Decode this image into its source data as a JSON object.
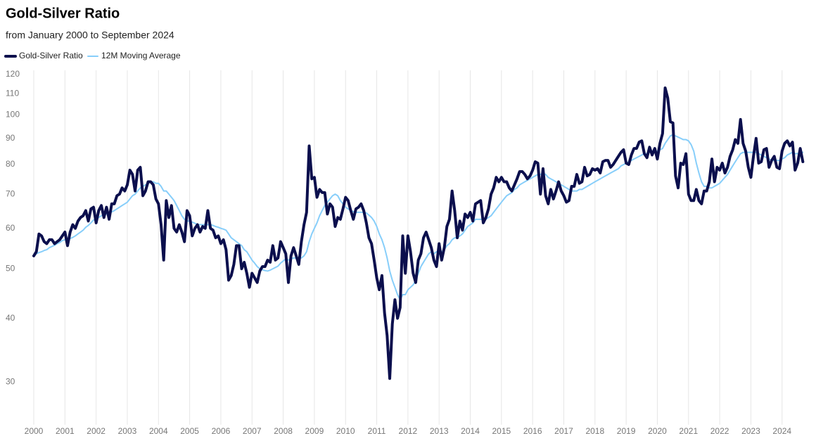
{
  "chart_data": {
    "type": "line",
    "title": "Gold-Silver Ratio",
    "subtitle": "from January 2000 to September 2024",
    "log_scale": true,
    "grid": "x",
    "legend": "top-left",
    "xlim": [
      2000,
      2024.75
    ],
    "xticks": [
      2000,
      2001,
      2002,
      2003,
      2004,
      2005,
      2006,
      2007,
      2008,
      2009,
      2010,
      2011,
      2012,
      2013,
      2014,
      2015,
      2016,
      2017,
      2018,
      2019,
      2020,
      2021,
      2022,
      2023,
      2024
    ],
    "ylim": [
      25,
      120
    ],
    "yticks": [
      30,
      40,
      50,
      60,
      70,
      80,
      90,
      100,
      110,
      120
    ],
    "x": [
      2000,
      2000.083,
      2000.167,
      2000.25,
      2000.333,
      2000.417,
      2000.5,
      2000.583,
      2000.667,
      2000.75,
      2000.833,
      2000.917,
      2001,
      2001.083,
      2001.167,
      2001.25,
      2001.333,
      2001.417,
      2001.5,
      2001.583,
      2001.667,
      2001.75,
      2001.833,
      2001.917,
      2002,
      2002.083,
      2002.167,
      2002.25,
      2002.333,
      2002.417,
      2002.5,
      2002.583,
      2002.667,
      2002.75,
      2002.833,
      2002.917,
      2003,
      2003.083,
      2003.167,
      2003.25,
      2003.333,
      2003.417,
      2003.5,
      2003.583,
      2003.667,
      2003.75,
      2003.833,
      2003.917,
      2004,
      2004.083,
      2004.167,
      2004.25,
      2004.333,
      2004.417,
      2004.5,
      2004.583,
      2004.667,
      2004.75,
      2004.833,
      2004.917,
      2005,
      2005.083,
      2005.167,
      2005.25,
      2005.333,
      2005.417,
      2005.5,
      2005.583,
      2005.667,
      2005.75,
      2005.833,
      2005.917,
      2006,
      2006.083,
      2006.167,
      2006.25,
      2006.333,
      2006.417,
      2006.5,
      2006.583,
      2006.667,
      2006.75,
      2006.833,
      2006.917,
      2007,
      2007.083,
      2007.167,
      2007.25,
      2007.333,
      2007.417,
      2007.5,
      2007.583,
      2007.667,
      2007.75,
      2007.833,
      2007.917,
      2008,
      2008.083,
      2008.167,
      2008.25,
      2008.333,
      2008.417,
      2008.5,
      2008.583,
      2008.667,
      2008.75,
      2008.833,
      2008.917,
      2009,
      2009.083,
      2009.167,
      2009.25,
      2009.333,
      2009.417,
      2009.5,
      2009.583,
      2009.667,
      2009.75,
      2009.833,
      2009.917,
      2010,
      2010.083,
      2010.167,
      2010.25,
      2010.333,
      2010.417,
      2010.5,
      2010.583,
      2010.667,
      2010.75,
      2010.833,
      2010.917,
      2011,
      2011.083,
      2011.167,
      2011.25,
      2011.333,
      2011.417,
      2011.5,
      2011.583,
      2011.667,
      2011.75,
      2011.833,
      2011.917,
      2012,
      2012.083,
      2012.167,
      2012.25,
      2012.333,
      2012.417,
      2012.5,
      2012.583,
      2012.667,
      2012.75,
      2012.833,
      2012.917,
      2013,
      2013.083,
      2013.167,
      2013.25,
      2013.333,
      2013.417,
      2013.5,
      2013.583,
      2013.667,
      2013.75,
      2013.833,
      2013.917,
      2014,
      2014.083,
      2014.167,
      2014.25,
      2014.333,
      2014.417,
      2014.5,
      2014.583,
      2014.667,
      2014.75,
      2014.833,
      2014.917,
      2015,
      2015.083,
      2015.167,
      2015.25,
      2015.333,
      2015.417,
      2015.5,
      2015.583,
      2015.667,
      2015.75,
      2015.833,
      2015.917,
      2016,
      2016.083,
      2016.167,
      2016.25,
      2016.333,
      2016.417,
      2016.5,
      2016.583,
      2016.667,
      2016.75,
      2016.833,
      2016.917,
      2017,
      2017.083,
      2017.167,
      2017.25,
      2017.333,
      2017.417,
      2017.5,
      2017.583,
      2017.667,
      2017.75,
      2017.833,
      2017.917,
      2018,
      2018.083,
      2018.167,
      2018.25,
      2018.333,
      2018.417,
      2018.5,
      2018.583,
      2018.667,
      2018.75,
      2018.833,
      2018.917,
      2019,
      2019.083,
      2019.167,
      2019.25,
      2019.333,
      2019.417,
      2019.5,
      2019.583,
      2019.667,
      2019.75,
      2019.833,
      2019.917,
      2020,
      2020.083,
      2020.167,
      2020.25,
      2020.333,
      2020.417,
      2020.5,
      2020.583,
      2020.667,
      2020.75,
      2020.833,
      2020.917,
      2021,
      2021.083,
      2021.167,
      2021.25,
      2021.333,
      2021.417,
      2021.5,
      2021.583,
      2021.667,
      2021.75,
      2021.833,
      2021.917,
      2022,
      2022.083,
      2022.167,
      2022.25,
      2022.333,
      2022.417,
      2022.5,
      2022.583,
      2022.667,
      2022.75,
      2022.833,
      2022.917,
      2023,
      2023.083,
      2023.167,
      2023.25,
      2023.333,
      2023.417,
      2023.5,
      2023.583,
      2023.667,
      2023.75,
      2023.833,
      2023.917,
      2024,
      2024.083,
      2024.167,
      2024.25,
      2024.333,
      2024.417,
      2024.5,
      2024.583,
      2024.667
    ],
    "series": [
      {
        "name": "Gold-Silver Ratio",
        "color": "#0b0f4d",
        "width": 4,
        "values": [
          53,
          54,
          58.5,
          58,
          56.5,
          56,
          57,
          57,
          56,
          56.5,
          57,
          58,
          59,
          55.5,
          59,
          61,
          60,
          62,
          63,
          63.5,
          65,
          62,
          65.5,
          66,
          61.5,
          65,
          66.5,
          63,
          66,
          62.5,
          67,
          67,
          69.5,
          70,
          72,
          71,
          73,
          78,
          76.5,
          71,
          78,
          79,
          69.5,
          71,
          74,
          74,
          73,
          68.5,
          67,
          61,
          52,
          68,
          63,
          66.5,
          60,
          59,
          61,
          59,
          56.5,
          65,
          63.5,
          58,
          60,
          61,
          59,
          60.5,
          60,
          65,
          60,
          59.5,
          57.5,
          58,
          56,
          57,
          54.5,
          47.5,
          48.5,
          51,
          55.5,
          55.5,
          50,
          51.5,
          49,
          46,
          49,
          48,
          47,
          49.5,
          50.5,
          50.5,
          52,
          51.5,
          55.5,
          52,
          52.5,
          56.5,
          55,
          53.5,
          47,
          53,
          55,
          53,
          51,
          56.5,
          61,
          64.5,
          87,
          75,
          75.5,
          69,
          71.5,
          70.5,
          70.5,
          64,
          67,
          66,
          60.5,
          63,
          62.5,
          65.5,
          69,
          68,
          65,
          62.5,
          65.5,
          66,
          67,
          65,
          61.5,
          57.5,
          56,
          52,
          48,
          45.5,
          48.5,
          41,
          37,
          30.5,
          39,
          43.5,
          40,
          42,
          58,
          49,
          58,
          54,
          49,
          47,
          52,
          53.5,
          57.5,
          59,
          57,
          55,
          52,
          50.5,
          56,
          52,
          55,
          60.5,
          62.5,
          71,
          65,
          57.5,
          62,
          59.5,
          64,
          63,
          64.5,
          62,
          67,
          67.5,
          68,
          61.5,
          63,
          65.5,
          70,
          72,
          75.5,
          74,
          75.5,
          74,
          74,
          72,
          71,
          73,
          75,
          77.5,
          77.5,
          76.5,
          75,
          76,
          78,
          81,
          80.5,
          70,
          78.5,
          69.5,
          67,
          71.5,
          68.5,
          71,
          74,
          71,
          69.5,
          67.5,
          68,
          72.5,
          72.5,
          76.5,
          73.5,
          74,
          79,
          76,
          76.5,
          78.5,
          78,
          78.5,
          77,
          81,
          81.5,
          81.5,
          79,
          80,
          81.5,
          83,
          84.5,
          85.5,
          80.5,
          80,
          83.5,
          86,
          86,
          88.5,
          89,
          84,
          82.5,
          86.5,
          83.5,
          86,
          82,
          88,
          92,
          113,
          108,
          97,
          96.5,
          76,
          72,
          80.5,
          80,
          84,
          70,
          68,
          68,
          71.5,
          68,
          67,
          71,
          71,
          74,
          82,
          74,
          79,
          78,
          80.5,
          77,
          79,
          83,
          85.5,
          89.5,
          88,
          98,
          88,
          85,
          79,
          75.5,
          83,
          90,
          80.5,
          81,
          85.5,
          86,
          79,
          81.5,
          83,
          79,
          78.5,
          85,
          88,
          89,
          87,
          88.5,
          78,
          80.5,
          86,
          81
        ]
      },
      {
        "name": "12M Moving Average",
        "color": "#87cefa",
        "width": 2,
        "values": [
          53,
          53.5,
          53.8,
          54,
          54.3,
          54.5,
          55,
          55.3,
          55.6,
          56,
          56.3,
          56.8,
          57,
          57,
          57.3,
          57.6,
          58,
          58.5,
          59,
          59.5,
          60.3,
          60.8,
          61.5,
          62.3,
          62.5,
          63,
          63.5,
          63.8,
          64,
          64.2,
          64.6,
          65,
          65.5,
          66,
          66.5,
          67,
          67.5,
          68.5,
          69.5,
          70,
          71,
          72,
          72.5,
          73,
          73.5,
          74,
          74,
          73.5,
          73.5,
          72.5,
          71,
          71,
          70,
          69,
          68,
          66.5,
          65,
          63.5,
          62.5,
          62,
          62,
          61.7,
          61.4,
          61,
          61,
          61,
          61,
          61,
          61,
          60.8,
          60.5,
          60.3,
          60,
          59.8,
          59.5,
          58.5,
          57.5,
          57,
          56.5,
          56,
          55.5,
          54.5,
          54,
          53,
          52,
          51.3,
          50.5,
          50,
          49.8,
          49.6,
          49.5,
          49.7,
          50,
          50.3,
          50.6,
          51.3,
          51.8,
          52.3,
          52,
          52.3,
          52.5,
          52.5,
          52.5,
          52.5,
          53,
          54,
          56.5,
          58.5,
          60,
          61.5,
          63.5,
          65,
          66.5,
          67.5,
          68.5,
          69.5,
          70,
          69.5,
          68,
          67,
          66,
          65.5,
          65,
          64.7,
          64.5,
          64.5,
          64.5,
          64.5,
          64.3,
          63.7,
          63,
          62,
          60.5,
          58.5,
          57,
          55,
          52.5,
          49.5,
          47.5,
          46,
          44.5,
          43.5,
          44.5,
          44.5,
          45.5,
          46,
          46.5,
          47.5,
          49,
          50.5,
          51.5,
          52.5,
          53.5,
          54,
          53.5,
          54,
          54,
          54,
          54.5,
          55.5,
          56,
          57,
          57.5,
          57.5,
          58,
          58.5,
          59.5,
          60.5,
          61,
          61.5,
          62.5,
          62.5,
          62.5,
          62.5,
          62.5,
          63,
          63.5,
          64.5,
          65.5,
          66.5,
          67.5,
          68.5,
          69.5,
          70,
          70.5,
          71.5,
          72,
          73,
          73.5,
          74,
          74.5,
          75,
          75.5,
          76,
          76.5,
          76.5,
          77,
          76.5,
          75.5,
          75,
          74.5,
          74,
          73.5,
          73,
          72.5,
          72,
          71.5,
          71,
          71,
          71,
          71.5,
          71.5,
          72,
          72.5,
          73,
          73.5,
          74,
          74.5,
          75,
          75.5,
          76,
          76.5,
          77,
          77.5,
          78,
          78.5,
          79.5,
          80,
          80.5,
          81,
          81.5,
          82,
          82.5,
          83,
          83.5,
          84,
          84,
          84.5,
          85,
          85,
          85,
          85.5,
          86,
          88,
          89.5,
          91,
          91.5,
          91,
          90.5,
          90,
          89.5,
          89.5,
          89,
          87.5,
          85,
          80.5,
          77,
          74,
          72.5,
          72.5,
          72,
          72,
          72.5,
          73,
          73.5,
          74.5,
          75.5,
          76.5,
          78,
          79.5,
          81,
          82.5,
          84,
          84.5,
          84.5,
          84.5,
          84.5,
          84.5,
          84.5,
          84,
          83.5,
          83,
          82.5,
          82,
          81.5,
          81.5,
          81.5,
          81.5,
          82,
          82.5,
          83.5,
          84,
          84.5,
          84,
          84,
          84.5,
          84.5
        ]
      }
    ]
  }
}
